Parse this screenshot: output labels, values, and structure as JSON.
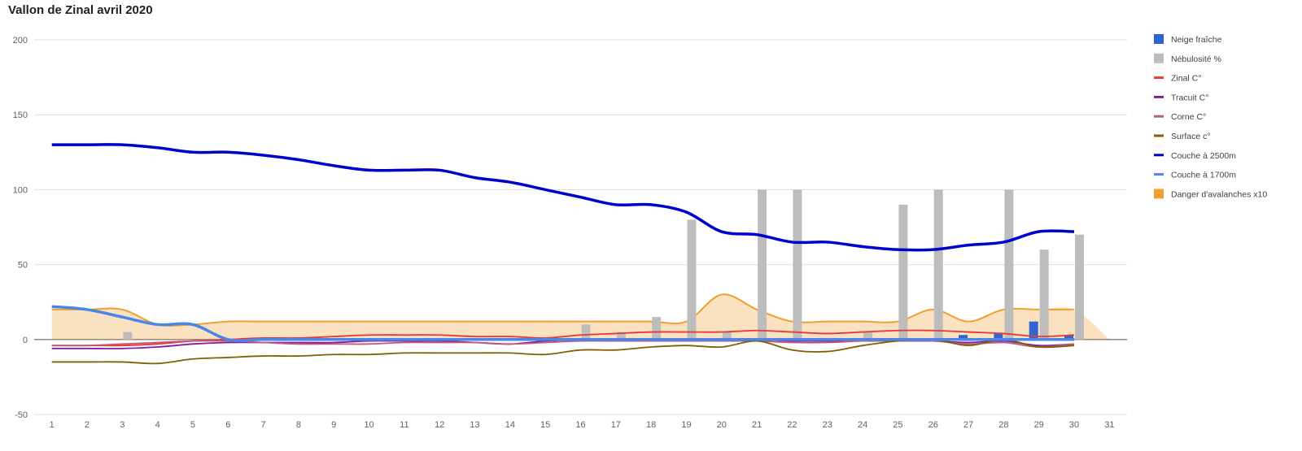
{
  "chart_data": {
    "type": "combo",
    "title": "Vallon de Zinal avril 2020",
    "xlabel": "",
    "ylabel": "",
    "categories": [
      1,
      2,
      3,
      4,
      5,
      6,
      7,
      8,
      9,
      10,
      11,
      12,
      13,
      14,
      15,
      16,
      17,
      18,
      19,
      20,
      21,
      22,
      23,
      24,
      25,
      26,
      27,
      28,
      29,
      30,
      31
    ],
    "ylim": [
      -50,
      200
    ],
    "yticks": [
      -50,
      0,
      50,
      100,
      150,
      200
    ],
    "grid": true,
    "legend_position": "right",
    "series": [
      {
        "name": "Neige fraîche",
        "kind": "bar",
        "color": "#3366cc",
        "values": [
          0,
          0,
          0,
          0,
          0,
          0,
          0,
          0,
          0,
          0,
          0,
          0,
          0,
          0,
          0,
          0,
          0,
          0,
          0,
          0,
          0,
          0,
          0,
          0,
          0,
          0,
          3,
          4,
          12,
          3,
          null
        ]
      },
      {
        "name": "Nébulosité %",
        "kind": "bar",
        "color": "#bdbdbd",
        "values": [
          0,
          0,
          5,
          0,
          0,
          0,
          0,
          0,
          0,
          0,
          0,
          0,
          0,
          0,
          0,
          10,
          5,
          15,
          80,
          5,
          100,
          100,
          0,
          5,
          90,
          100,
          0,
          100,
          60,
          70,
          null
        ]
      },
      {
        "name": "Zinal C°",
        "kind": "line",
        "color": "#e53935",
        "values": [
          -4,
          -4,
          -4,
          -3,
          -1,
          0,
          1,
          1,
          2,
          3,
          3,
          3,
          2,
          2,
          1,
          3,
          4,
          5,
          5,
          5,
          6,
          5,
          4,
          5,
          6,
          6,
          5,
          4,
          2,
          3,
          null
        ]
      },
      {
        "name": "Tracuit C°",
        "kind": "line",
        "color": "#7b1fa2",
        "values": [
          -6,
          -6,
          -6,
          -5,
          -3,
          -2,
          -2,
          -2,
          -2,
          -1,
          -1,
          -1,
          -2,
          -3,
          -1,
          0,
          0,
          0,
          0,
          0,
          0,
          -1,
          -1,
          -1,
          -1,
          -1,
          -2,
          -1,
          -4,
          -3,
          null
        ]
      },
      {
        "name": "Corne C°",
        "kind": "line",
        "color": "#c2577a",
        "values": [
          -4,
          -4,
          -3,
          -2,
          -1,
          -1,
          -2,
          -3,
          -3,
          -3,
          -2,
          -2,
          -2,
          -3,
          -2,
          -1,
          -1,
          -1,
          -1,
          -1,
          -1,
          -2,
          -2,
          -1,
          -1,
          -1,
          -3,
          -2,
          -5,
          -3,
          null
        ]
      },
      {
        "name": "Surface c°",
        "kind": "line",
        "color": "#806000",
        "values": [
          -15,
          -15,
          -15,
          -16,
          -13,
          -12,
          -11,
          -11,
          -10,
          -10,
          -9,
          -9,
          -9,
          -9,
          -10,
          -7,
          -7,
          -5,
          -4,
          -5,
          -1,
          -7,
          -8,
          -4,
          -1,
          0,
          -4,
          0,
          -5,
          -4,
          null
        ]
      },
      {
        "name": "Couche à 2500m",
        "kind": "line",
        "color": "#0000cc",
        "values": [
          130,
          130,
          130,
          128,
          125,
          125,
          123,
          120,
          116,
          113,
          113,
          113,
          108,
          105,
          100,
          95,
          90,
          90,
          85,
          72,
          70,
          65,
          65,
          62,
          60,
          60,
          63,
          65,
          72,
          72,
          null
        ]
      },
      {
        "name": "Couche à 1700m",
        "kind": "line",
        "color": "#4a86e8",
        "values": [
          22,
          20,
          15,
          10,
          10,
          0,
          0,
          0,
          0,
          0,
          0,
          0,
          0,
          0,
          0,
          0,
          0,
          0,
          0,
          0,
          0,
          0,
          0,
          0,
          0,
          0,
          0,
          0,
          0,
          0,
          null
        ]
      },
      {
        "name": "Danger d'avalanches x10",
        "kind": "area",
        "color": "#f0a030",
        "values": [
          20,
          20,
          20,
          10,
          10,
          12,
          12,
          12,
          12,
          12,
          12,
          12,
          12,
          12,
          12,
          12,
          12,
          12,
          12,
          30,
          20,
          12,
          12,
          12,
          12,
          20,
          12,
          20,
          20,
          20,
          0
        ]
      }
    ]
  }
}
